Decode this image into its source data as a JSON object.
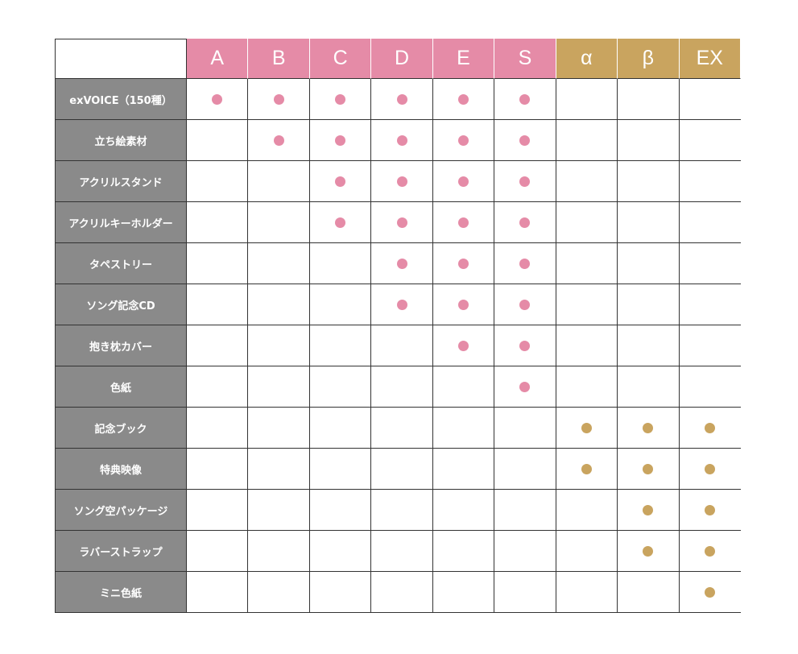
{
  "table": {
    "columns": [
      {
        "label": "A",
        "color": "#e58ba7"
      },
      {
        "label": "B",
        "color": "#e58ba7"
      },
      {
        "label": "C",
        "color": "#e58ba7"
      },
      {
        "label": "D",
        "color": "#e58ba7"
      },
      {
        "label": "E",
        "color": "#e58ba7"
      },
      {
        "label": "S",
        "color": "#e58ba7"
      },
      {
        "label": "α",
        "color": "#c9a45f"
      },
      {
        "label": "β",
        "color": "#c9a45f"
      },
      {
        "label": "EX",
        "color": "#c9a45f"
      }
    ],
    "rows": [
      {
        "label": "exVOICE（150種）",
        "cells": [
          true,
          true,
          true,
          true,
          true,
          true,
          false,
          false,
          false
        ]
      },
      {
        "label": "立ち絵素材",
        "cells": [
          false,
          true,
          true,
          true,
          true,
          true,
          false,
          false,
          false
        ]
      },
      {
        "label": "アクリルスタンド",
        "cells": [
          false,
          false,
          true,
          true,
          true,
          true,
          false,
          false,
          false
        ]
      },
      {
        "label": "アクリルキーホルダー",
        "cells": [
          false,
          false,
          true,
          true,
          true,
          true,
          false,
          false,
          false
        ]
      },
      {
        "label": "タペストリー",
        "cells": [
          false,
          false,
          false,
          true,
          true,
          true,
          false,
          false,
          false
        ]
      },
      {
        "label": "ソング記念CD",
        "cells": [
          false,
          false,
          false,
          true,
          true,
          true,
          false,
          false,
          false
        ]
      },
      {
        "label": "抱き枕カバー",
        "cells": [
          false,
          false,
          false,
          false,
          true,
          true,
          false,
          false,
          false
        ]
      },
      {
        "label": "色紙",
        "cells": [
          false,
          false,
          false,
          false,
          false,
          true,
          false,
          false,
          false
        ]
      },
      {
        "label": "記念ブック",
        "cells": [
          false,
          false,
          false,
          false,
          false,
          false,
          true,
          true,
          true
        ]
      },
      {
        "label": "特典映像",
        "cells": [
          false,
          false,
          false,
          false,
          false,
          false,
          true,
          true,
          true
        ]
      },
      {
        "label": "ソング空パッケージ",
        "cells": [
          false,
          false,
          false,
          false,
          false,
          false,
          false,
          true,
          true
        ]
      },
      {
        "label": "ラバーストラップ",
        "cells": [
          false,
          false,
          false,
          false,
          false,
          false,
          false,
          true,
          true
        ]
      },
      {
        "label": "ミニ色紙",
        "cells": [
          false,
          false,
          false,
          false,
          false,
          false,
          false,
          false,
          true
        ]
      }
    ]
  }
}
